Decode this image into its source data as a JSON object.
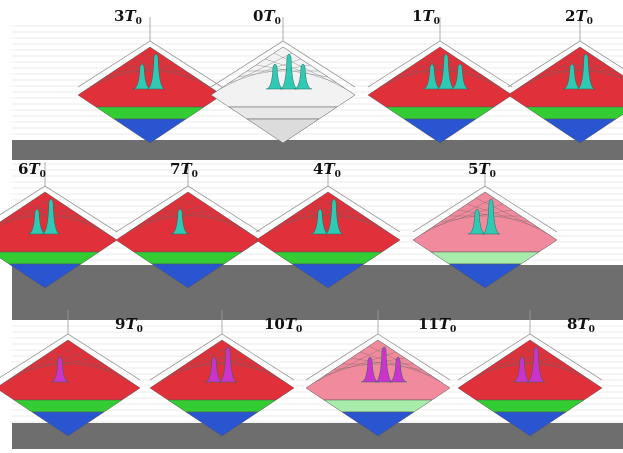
{
  "colors": {
    "background": "#ffffff",
    "band_gray": "#6e6e6e",
    "red": "#e0303a",
    "green": "#33cc33",
    "blue": "#2a55d0",
    "pink": "#f08a9c",
    "pale_green": "#a8ecac",
    "peak_teal": "#2fc9b4",
    "peak_magenta": "#cc33cc",
    "grid_line": "#9a9a9a"
  },
  "panels": [
    {
      "id": "p3",
      "n": "3",
      "sym": "T",
      "sub": "0",
      "palette": "rgb",
      "peaks": 2,
      "peak": "peak_teal"
    },
    {
      "id": "p0",
      "n": "0",
      "sym": "T",
      "sub": "0",
      "palette": "mono",
      "peaks": 3,
      "peak": "peak_teal"
    },
    {
      "id": "p1",
      "n": "1",
      "sym": "T",
      "sub": "0",
      "palette": "rgb",
      "peaks": 3,
      "peak": "peak_teal"
    },
    {
      "id": "p2",
      "n": "2",
      "sym": "T",
      "sub": "0",
      "palette": "rgb",
      "peaks": 2,
      "peak": "peak_teal"
    },
    {
      "id": "p6",
      "n": "6",
      "sym": "T",
      "sub": "0",
      "palette": "rgb",
      "peaks": 2,
      "peak": "peak_teal"
    },
    {
      "id": "p7",
      "n": "7",
      "sym": "T",
      "sub": "0",
      "palette": "rgb",
      "peaks": 1,
      "peak": "peak_teal"
    },
    {
      "id": "p4",
      "n": "4",
      "sym": "T",
      "sub": "0",
      "palette": "rgb",
      "peaks": 2,
      "peak": "peak_teal"
    },
    {
      "id": "p5",
      "n": "5",
      "sym": "T",
      "sub": "0",
      "palette": "pale",
      "peaks": 2,
      "peak": "peak_teal"
    },
    {
      "id": "p9",
      "n": "9",
      "sym": "T",
      "sub": "0",
      "palette": "rgb",
      "peaks": 1,
      "peak": "peak_magenta"
    },
    {
      "id": "p10",
      "n": "10",
      "sym": "T",
      "sub": "0",
      "palette": "rgb",
      "peaks": 2,
      "peak": "peak_magenta"
    },
    {
      "id": "p11",
      "n": "11",
      "sym": "T",
      "sub": "0",
      "palette": "pale",
      "peaks": 3,
      "peak": "peak_magenta"
    },
    {
      "id": "p8",
      "n": "8",
      "sym": "T",
      "sub": "0",
      "palette": "rgb",
      "peaks": 2,
      "peak": "peak_magenta"
    }
  ]
}
